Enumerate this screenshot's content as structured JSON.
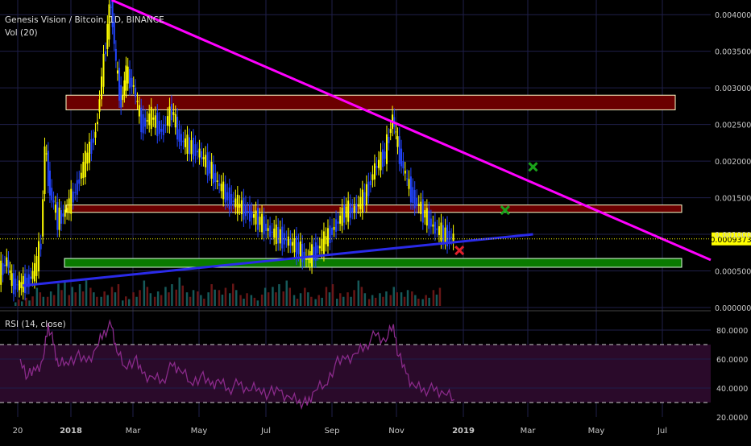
{
  "title": "Genesis Vision / Bitcoin, 1D, BINANCE",
  "volume_label": "Vol (20)",
  "rsi_label": "RSI (14, close)",
  "last_price": "0.0009373",
  "colors": {
    "background": "#000000",
    "grid": "#1f1f4a",
    "up_candle": "#ffff00",
    "down_candle": "#2244ff",
    "trendline_magenta": "#ff00ff",
    "trendline_blue": "#2a2ae8",
    "resistance_fill": "#6b0000",
    "support_fill": "#0a7a00",
    "rsi_line": "#8a2a8a",
    "rsi_band": "#2a0a2a",
    "axis_text": "#c8c8c8",
    "price_tag": "#ffff00"
  },
  "icons": [
    "x-mark-red-icon",
    "x-mark-green-icon"
  ],
  "chart_data": [
    {
      "type": "candlestick",
      "pane": "price",
      "title": "Genesis Vision / Bitcoin, 1D, BINANCE",
      "x_ticks": [
        "20",
        "2018",
        "Mar",
        "May",
        "Jul",
        "Sep",
        "Nov",
        "2019",
        "Mar",
        "May",
        "Jul"
      ],
      "y_ticks": [
        "0.0040000",
        "0.0035000",
        "0.0030000",
        "0.0025000",
        "0.0020000",
        "0.0015000",
        "0.0010000",
        "0.0005000",
        "0.0000000"
      ],
      "ylim": [
        0,
        0.0042
      ],
      "last_value": 0.0009373,
      "series_close": [
        [
          0,
          0.00045
        ],
        [
          6,
          0.00065
        ],
        [
          10,
          0.00033
        ],
        [
          16,
          0.0003
        ],
        [
          22,
          0.00035
        ],
        [
          28,
          0.0005
        ],
        [
          33,
          0.0009
        ],
        [
          36,
          0.0022
        ],
        [
          40,
          0.0016
        ],
        [
          46,
          0.0012
        ],
        [
          52,
          0.0013
        ],
        [
          60,
          0.0016
        ],
        [
          68,
          0.002
        ],
        [
          76,
          0.0024
        ],
        [
          84,
          0.0036
        ],
        [
          88,
          0.0042
        ],
        [
          92,
          0.0033
        ],
        [
          96,
          0.0028
        ],
        [
          100,
          0.0032
        ],
        [
          106,
          0.003
        ],
        [
          112,
          0.0025
        ],
        [
          120,
          0.0026
        ],
        [
          128,
          0.0024
        ],
        [
          136,
          0.0027
        ],
        [
          142,
          0.0023
        ],
        [
          150,
          0.0022
        ],
        [
          158,
          0.0021
        ],
        [
          166,
          0.0019
        ],
        [
          172,
          0.0017
        ],
        [
          180,
          0.0015
        ],
        [
          188,
          0.0014
        ],
        [
          196,
          0.0013
        ],
        [
          204,
          0.0012
        ],
        [
          212,
          0.00105
        ],
        [
          220,
          0.00098
        ],
        [
          228,
          0.0009
        ],
        [
          236,
          0.0008
        ],
        [
          242,
          0.00065
        ],
        [
          248,
          0.00075
        ],
        [
          256,
          0.0009
        ],
        [
          264,
          0.0011
        ],
        [
          272,
          0.0013
        ],
        [
          280,
          0.00135
        ],
        [
          288,
          0.0015
        ],
        [
          296,
          0.0019
        ],
        [
          304,
          0.0021
        ],
        [
          310,
          0.0026
        ],
        [
          314,
          0.0022
        ],
        [
          320,
          0.0018
        ],
        [
          326,
          0.0015
        ],
        [
          334,
          0.0013
        ],
        [
          342,
          0.0011
        ],
        [
          350,
          0.001
        ],
        [
          358,
          0.00094
        ]
      ],
      "horizontal_zones": [
        {
          "kind": "resistance",
          "from": 0.0027,
          "to": 0.0029
        },
        {
          "kind": "resistance",
          "from": 0.0013,
          "to": 0.0014
        },
        {
          "kind": "support",
          "from": 0.00055,
          "to": 0.00067
        }
      ],
      "trendlines": [
        {
          "kind": "descending",
          "from": [
            88,
            0.0042
          ],
          "to": [
            560,
            0.00065
          ]
        },
        {
          "kind": "ascending",
          "from": [
            18,
            0.0003
          ],
          "to": [
            420,
            0.001
          ]
        }
      ],
      "markers": [
        {
          "icon": "x-mark-red-icon",
          "x": 362,
          "y": 0.00078
        },
        {
          "icon": "x-mark-green-icon",
          "x": 398,
          "y": 0.00133
        },
        {
          "icon": "x-mark-green-icon",
          "x": 420,
          "y": 0.00192
        }
      ]
    },
    {
      "type": "bar",
      "pane": "volume",
      "title": "Vol (20)",
      "values_relative": [
        0.2,
        0.3,
        0.5,
        0.4,
        0.7,
        0.6,
        0.8,
        0.5,
        0.4,
        0.6,
        0.3,
        0.5,
        0.7,
        0.4,
        0.6,
        0.9,
        0.5,
        0.4,
        0.6,
        0.5,
        0.7,
        0.4,
        0.3,
        0.5,
        0.6,
        0.8,
        0.4,
        0.5,
        0.3,
        0.6,
        0.4,
        0.5,
        0.7,
        0.3,
        0.4,
        0.6,
        0.5,
        0.4,
        0.3,
        0.5
      ]
    },
    {
      "type": "line",
      "pane": "rsi",
      "title": "RSI (14, close)",
      "y_ticks": [
        "80.0000",
        "60.0000",
        "40.0000",
        "20.0000"
      ],
      "ylim": [
        20,
        90
      ],
      "band": [
        30,
        70
      ],
      "values": [
        [
          16,
          60
        ],
        [
          22,
          48
        ],
        [
          28,
          52
        ],
        [
          34,
          60
        ],
        [
          38,
          85
        ],
        [
          42,
          70
        ],
        [
          46,
          55
        ],
        [
          52,
          58
        ],
        [
          60,
          62
        ],
        [
          68,
          58
        ],
        [
          76,
          68
        ],
        [
          82,
          80
        ],
        [
          88,
          82
        ],
        [
          92,
          65
        ],
        [
          98,
          55
        ],
        [
          106,
          60
        ],
        [
          112,
          50
        ],
        [
          120,
          48
        ],
        [
          128,
          46
        ],
        [
          136,
          55
        ],
        [
          142,
          52
        ],
        [
          150,
          44
        ],
        [
          158,
          48
        ],
        [
          166,
          42
        ],
        [
          172,
          46
        ],
        [
          180,
          40
        ],
        [
          188,
          42
        ],
        [
          196,
          38
        ],
        [
          204,
          40
        ],
        [
          212,
          36
        ],
        [
          220,
          38
        ],
        [
          228,
          34
        ],
        [
          236,
          32
        ],
        [
          242,
          28
        ],
        [
          248,
          38
        ],
        [
          256,
          42
        ],
        [
          264,
          56
        ],
        [
          272,
          60
        ],
        [
          280,
          64
        ],
        [
          288,
          70
        ],
        [
          296,
          76
        ],
        [
          304,
          72
        ],
        [
          310,
          84
        ],
        [
          314,
          62
        ],
        [
          320,
          50
        ],
        [
          326,
          42
        ],
        [
          334,
          40
        ],
        [
          342,
          38
        ],
        [
          350,
          36
        ],
        [
          358,
          32
        ]
      ]
    }
  ]
}
